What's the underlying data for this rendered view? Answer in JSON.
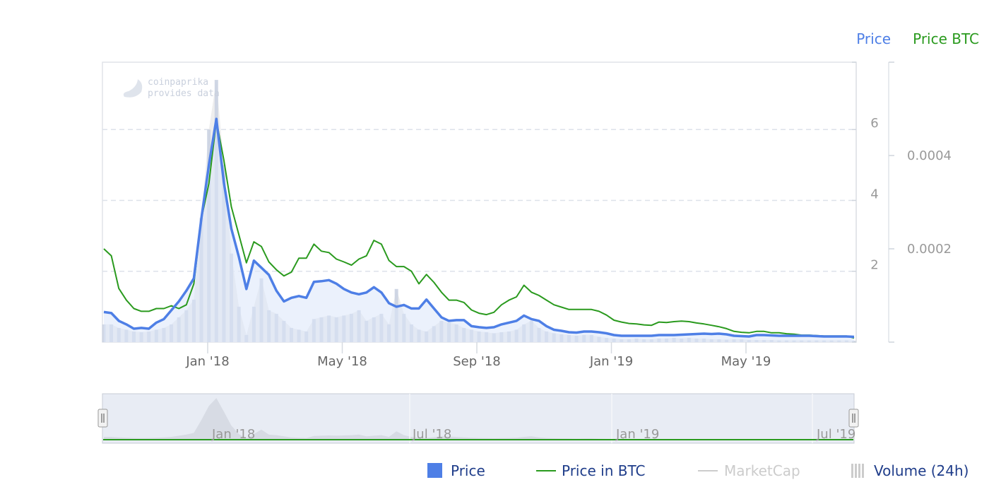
{
  "watermark": {
    "line1": "coinpaprika",
    "line2": "provides data"
  },
  "axis_titles": {
    "price": "Price",
    "price_btc": "Price BTC"
  },
  "legend": [
    {
      "id": "price",
      "label": "Price",
      "color": "#4e7fe6",
      "symbol": "square",
      "enabled": true
    },
    {
      "id": "price_btc",
      "label": "Price in BTC",
      "color": "#2a9a1e",
      "symbol": "line",
      "enabled": true
    },
    {
      "id": "marketcap",
      "label": "MarketCap",
      "color": "#cccccc",
      "symbol": "line",
      "enabled": false
    },
    {
      "id": "volume",
      "label": "Volume (24h)",
      "color": "#cccccc",
      "symbol": "bars",
      "enabled": true
    }
  ],
  "navigator": {
    "labels": [
      "Jan '18",
      "Jul '18",
      "Jan '19",
      "Jul '19"
    ]
  },
  "chart_data": {
    "type": "line",
    "x_tick_labels": [
      "Jan '18",
      "May '18",
      "Sep '18",
      "Jan '19",
      "May '19"
    ],
    "y_price": {
      "ticks": [
        2,
        4,
        6
      ],
      "range": [
        0,
        7.9
      ]
    },
    "y_price_btc": {
      "ticks": [
        0.0002,
        0.0004
      ],
      "range": [
        0,
        0.0006
      ]
    },
    "grid": true,
    "legend_position": "bottom-right",
    "series": [
      {
        "name": "Price",
        "color": "#4e7fe6",
        "values": [
          0.85,
          0.82,
          0.6,
          0.5,
          0.38,
          0.4,
          0.38,
          0.55,
          0.65,
          0.9,
          1.15,
          1.45,
          1.8,
          3.5,
          5.0,
          6.3,
          4.5,
          3.2,
          2.4,
          1.5,
          2.3,
          2.1,
          1.9,
          1.45,
          1.15,
          1.25,
          1.3,
          1.25,
          1.7,
          1.72,
          1.75,
          1.65,
          1.5,
          1.4,
          1.35,
          1.4,
          1.55,
          1.4,
          1.1,
          1.0,
          1.05,
          0.95,
          0.95,
          1.2,
          0.95,
          0.7,
          0.6,
          0.62,
          0.62,
          0.45,
          0.42,
          0.4,
          0.42,
          0.5,
          0.55,
          0.6,
          0.75,
          0.65,
          0.6,
          0.45,
          0.35,
          0.32,
          0.28,
          0.27,
          0.3,
          0.3,
          0.28,
          0.25,
          0.2,
          0.18,
          0.18,
          0.18,
          0.18,
          0.18,
          0.2,
          0.2,
          0.2,
          0.21,
          0.22,
          0.23,
          0.24,
          0.23,
          0.24,
          0.22,
          0.18,
          0.17,
          0.16,
          0.2,
          0.2,
          0.19,
          0.18,
          0.18,
          0.18,
          0.18,
          0.18,
          0.17,
          0.16,
          0.16,
          0.16,
          0.16,
          0.15
        ]
      },
      {
        "name": "Price in BTC",
        "color": "#2a9a1e",
        "values": [
          0.0002,
          0.000185,
          0.000115,
          9e-05,
          7.2e-05,
          6.6e-05,
          6.6e-05,
          7.2e-05,
          7.2e-05,
          7.8e-05,
          7.2e-05,
          8e-05,
          0.000125,
          0.000265,
          0.00034,
          0.000475,
          0.00039,
          0.00029,
          0.00023,
          0.00017,
          0.000215,
          0.000205,
          0.000172,
          0.000155,
          0.000142,
          0.00015,
          0.00018,
          0.00018,
          0.00021,
          0.000195,
          0.000192,
          0.000178,
          0.000172,
          0.000165,
          0.000178,
          0.000185,
          0.000218,
          0.00021,
          0.000175,
          0.000162,
          0.000162,
          0.000152,
          0.000125,
          0.000145,
          0.000128,
          0.000107,
          9e-05,
          9e-05,
          8.5e-05,
          6.9e-05,
          6.2e-05,
          5.9e-05,
          6.4e-05,
          8e-05,
          9e-05,
          9.7e-05,
          0.000122,
          0.000107,
          0.0001,
          9e-05,
          8e-05,
          7.5e-05,
          7e-05,
          7e-05,
          7e-05,
          7e-05,
          6.6e-05,
          5.8e-05,
          4.7e-05,
          4.3e-05,
          4e-05,
          3.9e-05,
          3.7e-05,
          3.6e-05,
          4.3e-05,
          4.2e-05,
          4.4e-05,
          4.5e-05,
          4.4e-05,
          4.1e-05,
          3.9e-05,
          3.6e-05,
          3.3e-05,
          2.9e-05,
          2.3e-05,
          2.1e-05,
          2e-05,
          2.3e-05,
          2.3e-05,
          2e-05,
          2e-05,
          1.8e-05,
          1.7e-05,
          1.5e-05,
          1.5e-05,
          1.4e-05,
          1.3e-05,
          1.3e-05,
          1.3e-05,
          1.3e-05,
          9e-06
        ]
      },
      {
        "name": "Volume (24h)",
        "color": "#c8d0e0",
        "values": [
          0.5,
          0.5,
          0.4,
          0.35,
          0.3,
          0.28,
          0.3,
          0.35,
          0.4,
          0.5,
          0.7,
          0.9,
          1.2,
          3.5,
          6.0,
          7.4,
          5.0,
          2.5,
          1.0,
          0.2,
          1.0,
          1.8,
          0.9,
          0.8,
          0.6,
          0.4,
          0.35,
          0.3,
          0.65,
          0.7,
          0.75,
          0.7,
          0.75,
          0.8,
          0.9,
          0.6,
          0.7,
          0.8,
          0.5,
          1.5,
          0.8,
          0.5,
          0.35,
          0.3,
          0.45,
          0.6,
          0.55,
          0.5,
          0.4,
          0.35,
          0.3,
          0.28,
          0.25,
          0.28,
          0.3,
          0.35,
          0.5,
          0.6,
          0.4,
          0.3,
          0.25,
          0.22,
          0.2,
          0.18,
          0.2,
          0.2,
          0.15,
          0.12,
          0.1,
          0.08,
          0.08,
          0.1,
          0.08,
          0.08,
          0.1,
          0.1,
          0.12,
          0.1,
          0.12,
          0.1,
          0.1,
          0.08,
          0.08,
          0.07,
          0.08,
          0.08,
          0.06,
          0.06,
          0.06,
          0.06,
          0.05,
          0.05,
          0.05,
          0.05,
          0.05,
          0.05,
          0.05,
          0.05,
          0.05,
          0.05,
          0.04
        ]
      }
    ]
  }
}
